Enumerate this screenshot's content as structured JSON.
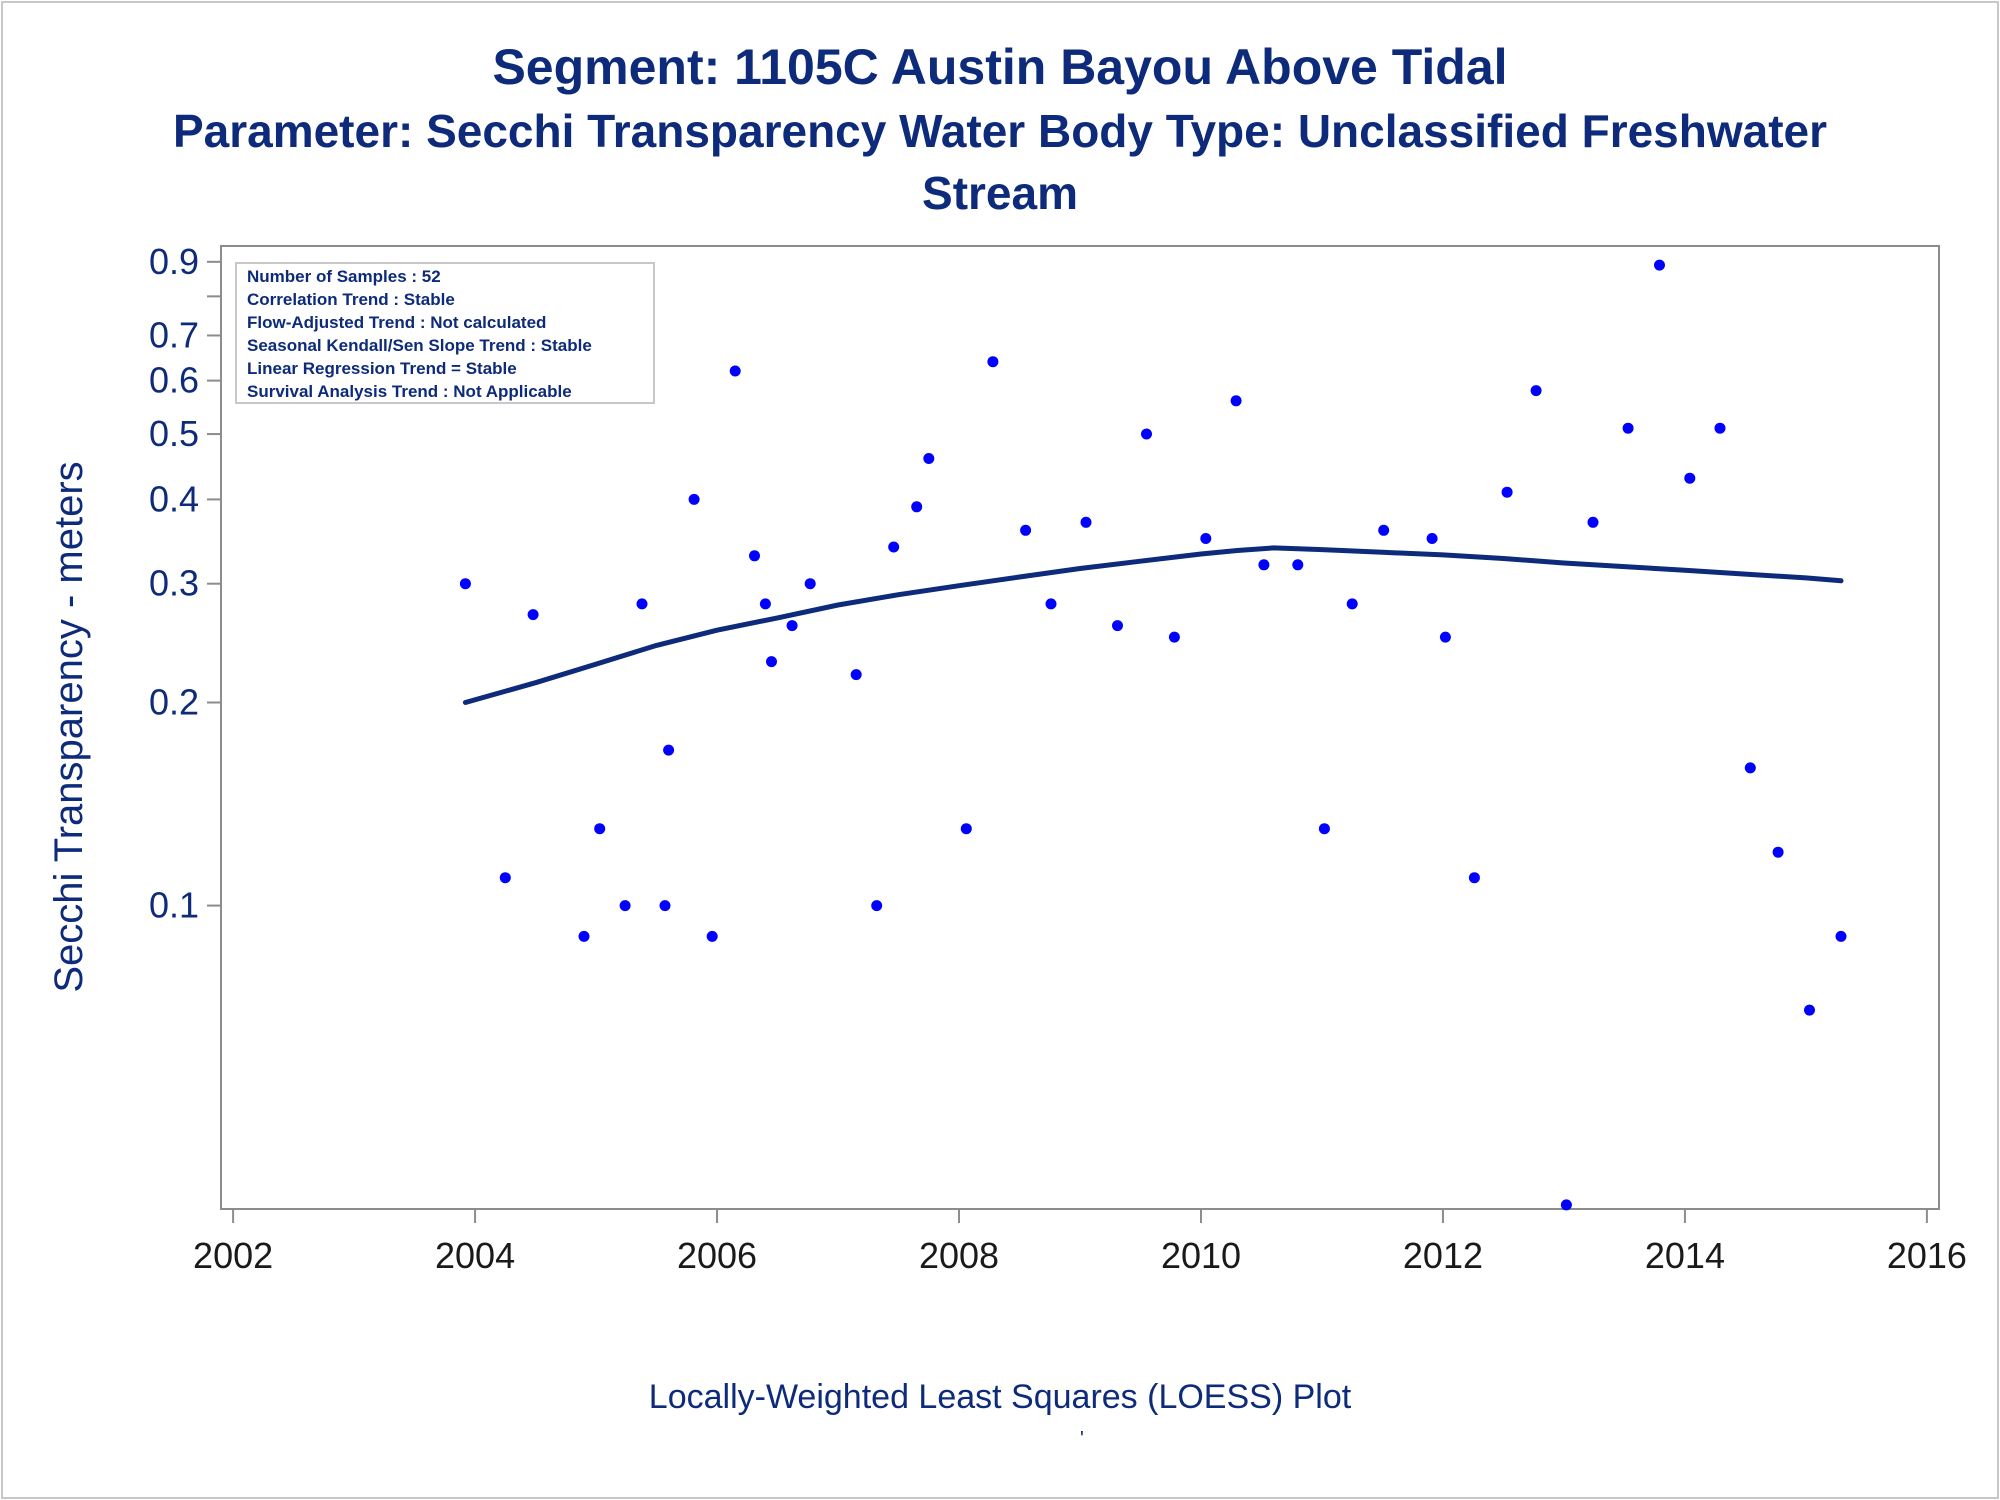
{
  "titles": {
    "line1": "Segment: 1105C  Austin Bayou Above Tidal",
    "line2": "Parameter: Secchi Transparency   Water Body Type: Unclassified Freshwater",
    "line3": "Stream"
  },
  "footnote": "Locally-Weighted Least Squares (LOESS) Plot",
  "footnote_mark": "'",
  "info_box": [
    "Number of Samples : 52",
    "Correlation Trend : Stable",
    "Flow-Adjusted Trend : Not calculated",
    "Seasonal Kendall/Sen Slope Trend : Stable",
    "Linear Regression Trend = Stable",
    "Survival Analysis Trend : Not Applicable"
  ],
  "colors": {
    "title": "#0d2b7a",
    "points": "#0000ff",
    "loess_line": "#0d2b7a",
    "axis": "#8c8c8c"
  },
  "chart_data": {
    "type": "scatter",
    "ylabel": "Secchi Transparency - meters",
    "xlabel": "",
    "yscale": "log",
    "xlim": [
      2001.9,
      2016.1
    ],
    "ylim": [
      0.0355,
      0.95
    ],
    "xticks": [
      2002,
      2004,
      2006,
      2008,
      2010,
      2012,
      2014,
      2016
    ],
    "yticks": [
      0.1,
      0.2,
      0.3,
      0.4,
      0.5,
      0.6,
      0.7,
      0.9
    ],
    "ytick_labels": [
      "0.1",
      "0.2",
      "0.3",
      "0.4",
      "0.5",
      "0.6",
      "0.7",
      "0.9"
    ],
    "minor_yticks": [
      0.8
    ],
    "grid": false,
    "points": [
      {
        "x": 2003.92,
        "y": 0.3
      },
      {
        "x": 2004.25,
        "y": 0.11
      },
      {
        "x": 2004.48,
        "y": 0.27
      },
      {
        "x": 2004.9,
        "y": 0.09
      },
      {
        "x": 2005.03,
        "y": 0.13
      },
      {
        "x": 2005.24,
        "y": 0.1
      },
      {
        "x": 2005.38,
        "y": 0.28
      },
      {
        "x": 2005.57,
        "y": 0.1
      },
      {
        "x": 2005.6,
        "y": 0.17
      },
      {
        "x": 2005.81,
        "y": 0.4
      },
      {
        "x": 2005.96,
        "y": 0.09
      },
      {
        "x": 2006.15,
        "y": 0.62
      },
      {
        "x": 2006.31,
        "y": 0.33
      },
      {
        "x": 2006.4,
        "y": 0.28
      },
      {
        "x": 2006.45,
        "y": 0.23
      },
      {
        "x": 2006.62,
        "y": 0.26
      },
      {
        "x": 2006.77,
        "y": 0.3
      },
      {
        "x": 2007.15,
        "y": 0.22
      },
      {
        "x": 2007.32,
        "y": 0.1
      },
      {
        "x": 2007.46,
        "y": 0.34
      },
      {
        "x": 2007.65,
        "y": 0.39
      },
      {
        "x": 2007.75,
        "y": 0.46
      },
      {
        "x": 2008.06,
        "y": 0.13
      },
      {
        "x": 2008.28,
        "y": 0.64
      },
      {
        "x": 2008.55,
        "y": 0.36
      },
      {
        "x": 2008.76,
        "y": 0.28
      },
      {
        "x": 2009.05,
        "y": 0.37
      },
      {
        "x": 2009.31,
        "y": 0.26
      },
      {
        "x": 2009.55,
        "y": 0.5
      },
      {
        "x": 2009.78,
        "y": 0.25
      },
      {
        "x": 2010.04,
        "y": 0.35
      },
      {
        "x": 2010.29,
        "y": 0.56
      },
      {
        "x": 2010.52,
        "y": 0.32
      },
      {
        "x": 2010.8,
        "y": 0.32
      },
      {
        "x": 2011.02,
        "y": 0.13
      },
      {
        "x": 2011.25,
        "y": 0.28
      },
      {
        "x": 2011.51,
        "y": 0.36
      },
      {
        "x": 2011.91,
        "y": 0.35
      },
      {
        "x": 2012.02,
        "y": 0.25
      },
      {
        "x": 2012.26,
        "y": 0.11
      },
      {
        "x": 2012.53,
        "y": 0.41
      },
      {
        "x": 2012.77,
        "y": 0.58
      },
      {
        "x": 2013.02,
        "y": 0.036
      },
      {
        "x": 2013.24,
        "y": 0.37
      },
      {
        "x": 2013.53,
        "y": 0.51
      },
      {
        "x": 2013.79,
        "y": 0.89
      },
      {
        "x": 2014.04,
        "y": 0.43
      },
      {
        "x": 2014.29,
        "y": 0.51
      },
      {
        "x": 2014.54,
        "y": 0.16
      },
      {
        "x": 2014.77,
        "y": 0.12
      },
      {
        "x": 2015.03,
        "y": 0.07
      },
      {
        "x": 2015.29,
        "y": 0.09
      }
    ],
    "loess": [
      {
        "x": 2003.92,
        "y": 0.2
      },
      {
        "x": 2004.5,
        "y": 0.214
      },
      {
        "x": 2005.0,
        "y": 0.228
      },
      {
        "x": 2005.5,
        "y": 0.243
      },
      {
        "x": 2006.0,
        "y": 0.256
      },
      {
        "x": 2006.5,
        "y": 0.267
      },
      {
        "x": 2007.0,
        "y": 0.279
      },
      {
        "x": 2007.5,
        "y": 0.289
      },
      {
        "x": 2008.0,
        "y": 0.298
      },
      {
        "x": 2008.5,
        "y": 0.307
      },
      {
        "x": 2009.0,
        "y": 0.316
      },
      {
        "x": 2009.5,
        "y": 0.324
      },
      {
        "x": 2010.0,
        "y": 0.332
      },
      {
        "x": 2010.3,
        "y": 0.336
      },
      {
        "x": 2010.6,
        "y": 0.339
      },
      {
        "x": 2011.0,
        "y": 0.337
      },
      {
        "x": 2011.5,
        "y": 0.334
      },
      {
        "x": 2012.0,
        "y": 0.331
      },
      {
        "x": 2012.5,
        "y": 0.327
      },
      {
        "x": 2013.0,
        "y": 0.322
      },
      {
        "x": 2013.5,
        "y": 0.318
      },
      {
        "x": 2014.0,
        "y": 0.314
      },
      {
        "x": 2014.5,
        "y": 0.31
      },
      {
        "x": 2015.0,
        "y": 0.306
      },
      {
        "x": 2015.29,
        "y": 0.303
      }
    ]
  }
}
